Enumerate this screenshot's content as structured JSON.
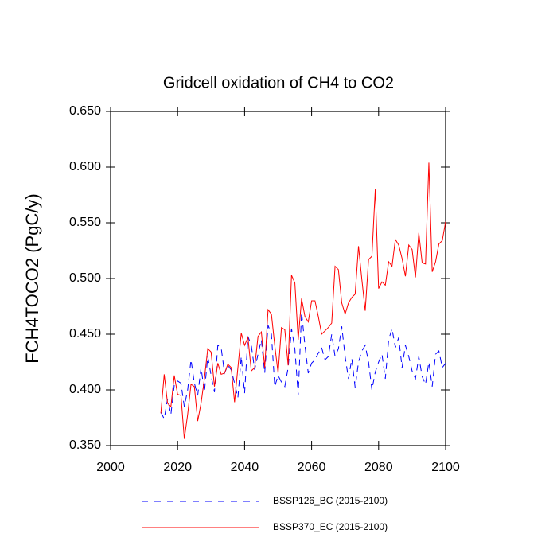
{
  "chart_data": {
    "type": "line",
    "title": "Gridcell oxidation of CH4 to CO2",
    "y_label": "FCH4TOCO2  (PgC/y)",
    "x": [
      2015,
      2016,
      2017,
      2018,
      2019,
      2020,
      2021,
      2022,
      2023,
      2024,
      2025,
      2026,
      2027,
      2028,
      2029,
      2030,
      2031,
      2032,
      2033,
      2034,
      2035,
      2036,
      2037,
      2038,
      2039,
      2040,
      2041,
      2042,
      2043,
      2044,
      2045,
      2046,
      2047,
      2048,
      2049,
      2050,
      2051,
      2052,
      2053,
      2054,
      2055,
      2056,
      2057,
      2058,
      2059,
      2060,
      2061,
      2062,
      2063,
      2064,
      2065,
      2066,
      2067,
      2068,
      2069,
      2070,
      2071,
      2072,
      2073,
      2074,
      2075,
      2076,
      2077,
      2078,
      2079,
      2080,
      2081,
      2082,
      2083,
      2084,
      2085,
      2086,
      2087,
      2088,
      2089,
      2090,
      2091,
      2092,
      2093,
      2094,
      2095,
      2096,
      2097,
      2098,
      2099,
      2100
    ],
    "series": [
      {
        "name": "BSSP126_BC (2015-2100)",
        "color": "#0000ff",
        "dashed": true,
        "values": [
          0.38,
          0.374,
          0.392,
          0.378,
          0.404,
          0.408,
          0.406,
          0.385,
          0.4,
          0.427,
          0.406,
          0.395,
          0.42,
          0.398,
          0.43,
          0.413,
          0.398,
          0.44,
          0.438,
          0.415,
          0.422,
          0.418,
          0.406,
          0.393,
          0.43,
          0.397,
          0.448,
          0.44,
          0.418,
          0.432,
          0.445,
          0.415,
          0.458,
          0.45,
          0.403,
          0.413,
          0.407,
          0.403,
          0.42,
          0.455,
          0.437,
          0.395,
          0.47,
          0.44,
          0.415,
          0.424,
          0.427,
          0.433,
          0.438,
          0.427,
          0.43,
          0.45,
          0.43,
          0.437,
          0.457,
          0.43,
          0.41,
          0.428,
          0.402,
          0.425,
          0.435,
          0.44,
          0.425,
          0.4,
          0.416,
          0.425,
          0.432,
          0.41,
          0.445,
          0.455,
          0.438,
          0.447,
          0.42,
          0.44,
          0.43,
          0.417,
          0.41,
          0.43,
          0.412,
          0.405,
          0.425,
          0.403,
          0.432,
          0.435,
          0.42,
          0.424
        ]
      },
      {
        "name": "BSSP370_EC (2015-2100)",
        "color": "#ff0000",
        "dashed": false,
        "values": [
          0.379,
          0.414,
          0.388,
          0.385,
          0.413,
          0.396,
          0.395,
          0.356,
          0.378,
          0.405,
          0.403,
          0.372,
          0.388,
          0.41,
          0.437,
          0.434,
          0.403,
          0.424,
          0.414,
          0.415,
          0.423,
          0.42,
          0.389,
          0.42,
          0.451,
          0.44,
          0.447,
          0.417,
          0.42,
          0.448,
          0.452,
          0.42,
          0.472,
          0.468,
          0.44,
          0.415,
          0.456,
          0.454,
          0.422,
          0.503,
          0.496,
          0.445,
          0.482,
          0.466,
          0.461,
          0.48,
          0.48,
          0.466,
          0.45,
          0.453,
          0.456,
          0.46,
          0.511,
          0.508,
          0.478,
          0.468,
          0.478,
          0.483,
          0.486,
          0.529,
          0.499,
          0.471,
          0.517,
          0.52,
          0.58,
          0.491,
          0.497,
          0.494,
          0.515,
          0.511,
          0.535,
          0.53,
          0.518,
          0.502,
          0.53,
          0.526,
          0.501,
          0.541,
          0.514,
          0.513,
          0.604,
          0.506,
          0.515,
          0.531,
          0.534,
          0.551
        ]
      }
    ],
    "xlim": [
      2000,
      2100
    ],
    "xticks": [
      2000,
      2020,
      2040,
      2060,
      2080,
      2100
    ],
    "ylim": [
      0.35,
      0.65
    ],
    "yticks": [
      {
        "value": 0.35,
        "label": "0.350"
      },
      {
        "value": 0.4,
        "label": "0.400"
      },
      {
        "value": 0.45,
        "label": "0.450"
      },
      {
        "value": 0.5,
        "label": "0.500"
      },
      {
        "value": 0.55,
        "label": "0.550"
      },
      {
        "value": 0.6,
        "label": "0.600"
      },
      {
        "value": 0.65,
        "label": "0.650"
      }
    ],
    "legend": "bottom"
  }
}
